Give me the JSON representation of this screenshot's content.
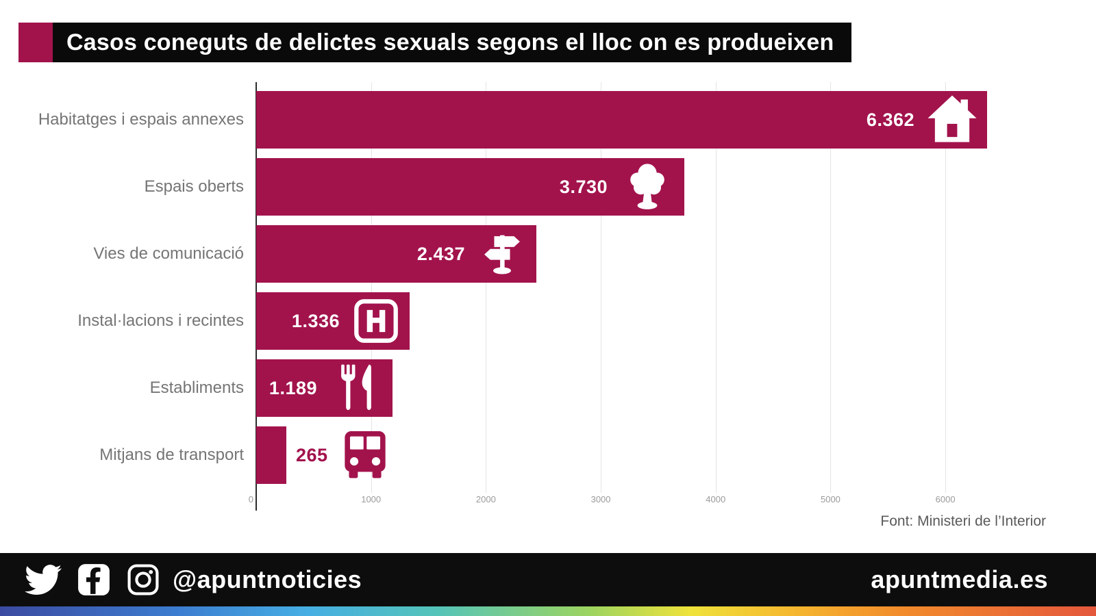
{
  "banner": {
    "title": "Casos coneguts de delictes sexuals segons el lloc on es produeixen"
  },
  "source_note": "Font: Ministeri de l’Interior",
  "footer": {
    "handle": "@apuntnoticies",
    "website": "apuntmedia.es",
    "social_icons": [
      "twitter-icon",
      "facebook-icon",
      "instagram-icon"
    ]
  },
  "colors": {
    "accent": "#A2134C",
    "banner_bg": "#0A0A0A",
    "footer_bg": "#0D0D0D",
    "category_label_text": "#757575",
    "tick_text": "#9A9A9A",
    "source_text": "#5A5A5A",
    "grid_line": "#E4E4E4",
    "axis_line": "#2B2B2B",
    "rainbow_stops": [
      "#3B4AA0",
      "#3C7CD0",
      "#46AEE3",
      "#55C4B8",
      "#9ED45F",
      "#EFE23B",
      "#F5B92F",
      "#F28C2B",
      "#E4573C"
    ],
    "rainbow_positions": [
      0,
      16,
      28,
      40,
      54,
      63,
      72,
      82,
      100
    ]
  },
  "chart_data": {
    "type": "bar",
    "orientation": "horizontal",
    "title": "Casos coneguts de delictes sexuals segons el lloc on es produeixen",
    "categories": [
      "Habitatges i espais annexes",
      "Espais oberts",
      "Vies de comunicació",
      "Instal·lacions i recintes",
      "Establiments",
      "Mitjans de transport"
    ],
    "values": [
      6362,
      3730,
      2437,
      1336,
      1189,
      265
    ],
    "value_labels": [
      "6.362",
      "3.730",
      "2.437",
      "1.336",
      "1.189",
      "265"
    ],
    "icons": [
      "house-icon",
      "tree-icon",
      "signpost-icon",
      "hospital-icon",
      "restaurant-icon",
      "bus-icon"
    ],
    "value_label_placement": [
      "inside",
      "inside",
      "inside",
      "inside",
      "inside",
      "outside"
    ],
    "xlim": [
      0,
      6500
    ],
    "xticks": [
      0,
      1000,
      2000,
      3000,
      4000,
      5000,
      6000
    ],
    "grid": true,
    "legend": false,
    "xlabel": "",
    "ylabel": ""
  }
}
